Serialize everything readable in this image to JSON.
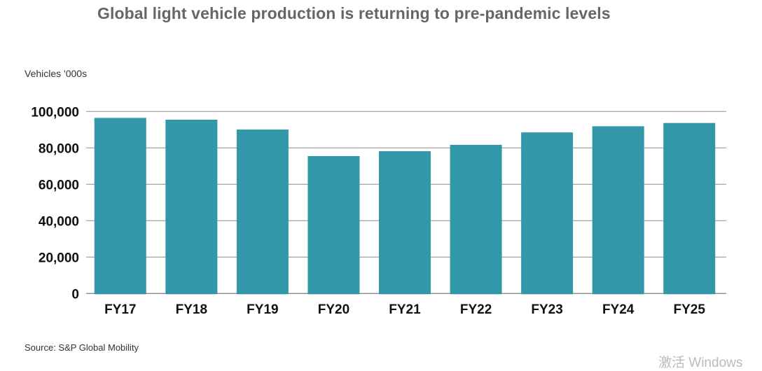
{
  "chart_data": {
    "type": "bar",
    "title": "Global light vehicle production is returning to pre-pandemic levels",
    "ylabel": "Vehicles '000s",
    "xlabel": "",
    "categories": [
      "FY17",
      "FY18",
      "FY19",
      "FY20",
      "FY21",
      "FY22",
      "FY23",
      "FY24",
      "FY25"
    ],
    "values": [
      96500,
      95500,
      90100,
      75500,
      78200,
      81700,
      88500,
      91900,
      93700
    ],
    "ylim": [
      0,
      100000
    ],
    "yticks": [
      0,
      20000,
      40000,
      60000,
      80000,
      100000
    ],
    "ytick_labels": [
      "0",
      "20,000",
      "40,000",
      "60,000",
      "80,000",
      "100,000"
    ],
    "grid": true,
    "bar_color": "#3298a9",
    "source": "Source: S&P Global Mobility"
  },
  "watermark": "激活 Windows"
}
